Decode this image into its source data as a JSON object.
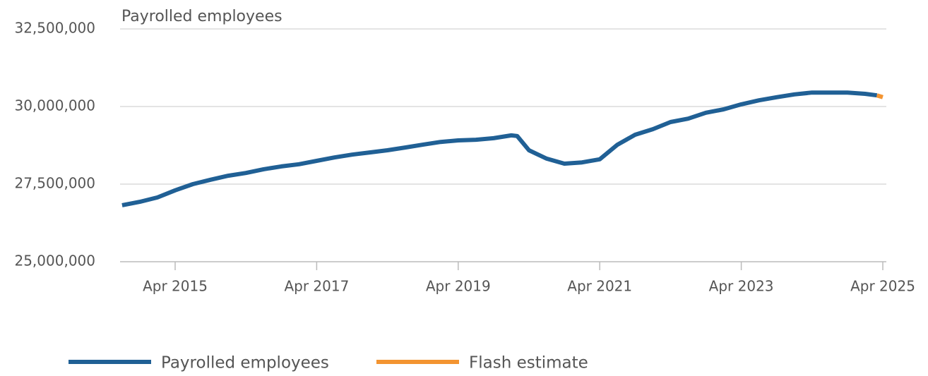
{
  "chart_data": {
    "type": "line",
    "title": "Payrolled employees",
    "x": [
      "Jul 2014",
      "Oct 2014",
      "Jan 2015",
      "Apr 2015",
      "Jul 2015",
      "Oct 2015",
      "Jan 2016",
      "Apr 2016",
      "Jul 2016",
      "Oct 2016",
      "Jan 2017",
      "Apr 2017",
      "Jul 2017",
      "Oct 2017",
      "Jan 2018",
      "Apr 2018",
      "Jul 2018",
      "Oct 2018",
      "Jan 2019",
      "Apr 2019",
      "Jul 2019",
      "Oct 2019",
      "Jan 2020",
      "Feb 2020",
      "Apr 2020",
      "Jul 2020",
      "Oct 2020",
      "Jan 2021",
      "Apr 2021",
      "Jul 2021",
      "Oct 2021",
      "Jan 2022",
      "Apr 2022",
      "Jul 2022",
      "Oct 2022",
      "Jan 2023",
      "Apr 2023",
      "Jul 2023",
      "Oct 2023",
      "Jan 2024",
      "Apr 2024",
      "Jul 2024",
      "Oct 2024",
      "Jan 2025",
      "Mar 2025",
      "Apr 2025"
    ],
    "series": [
      {
        "name": "Payrolled employees",
        "color": "#206095",
        "values": [
          26820000,
          26930000,
          27070000,
          27300000,
          27500000,
          27640000,
          27770000,
          27860000,
          27980000,
          28070000,
          28140000,
          28250000,
          28360000,
          28450000,
          28520000,
          28590000,
          28680000,
          28770000,
          28860000,
          28910000,
          28930000,
          28980000,
          29070000,
          29050000,
          28590000,
          28320000,
          28160000,
          28200000,
          28300000,
          28770000,
          29090000,
          29270000,
          29500000,
          29610000,
          29800000,
          29910000,
          30070000,
          30200000,
          30300000,
          30390000,
          30450000,
          30450000,
          30450000,
          30410000,
          30360000,
          null
        ]
      },
      {
        "name": "Flash estimate",
        "color": "#f39431",
        "values": [
          null,
          null,
          null,
          null,
          null,
          null,
          null,
          null,
          null,
          null,
          null,
          null,
          null,
          null,
          null,
          null,
          null,
          null,
          null,
          null,
          null,
          null,
          null,
          null,
          null,
          null,
          null,
          null,
          null,
          null,
          null,
          null,
          null,
          null,
          null,
          null,
          null,
          null,
          null,
          null,
          null,
          null,
          null,
          null,
          30360000,
          30300000
        ]
      }
    ],
    "xticks": [
      "Apr 2015",
      "Apr 2017",
      "Apr 2019",
      "Apr 2021",
      "Apr 2023",
      "Apr 2025"
    ],
    "ylim": [
      25000000,
      32500000
    ],
    "yticks": [
      {
        "value": 25000000,
        "label": "25,000,000"
      },
      {
        "value": 27500000,
        "label": "27,500,000"
      },
      {
        "value": 30000000,
        "label": "30,000,000"
      },
      {
        "value": 32500000,
        "label": "32,500,000"
      }
    ],
    "grid": true,
    "legend": "bottom"
  }
}
